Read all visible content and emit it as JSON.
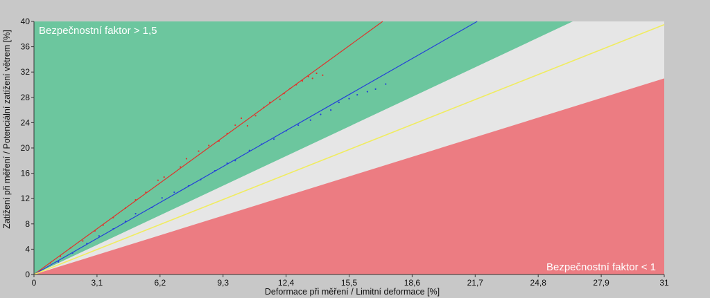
{
  "chart_data": {
    "type": "scatter",
    "xlabel": "Deformace při měření / Limitní deformace [%]",
    "ylabel": "Zatížení při měření / Potenciální zatížení větrem [%]",
    "xlim": [
      0,
      31
    ],
    "ylim": [
      0,
      40
    ],
    "x_ticks": [
      "0",
      "3,1",
      "6,2",
      "9,3",
      "12,4",
      "15,5",
      "18,6",
      "21,7",
      "24,8",
      "27,9",
      "31"
    ],
    "y_ticks": [
      "0",
      "4",
      "8",
      "12",
      "16",
      "20",
      "24",
      "28",
      "32",
      "36",
      "40"
    ],
    "grid": false,
    "annotations": {
      "top_left": "Bezpečnostní faktor > 1,5",
      "bottom_right": "Bezpečnostní faktor < 1"
    },
    "zones": {
      "safe_max_x_at_top": 26.5,
      "critical_y_at_right": 31.0,
      "colors": {
        "safe": "#6cc69e",
        "middle": "#e6e6e6",
        "critical": "#ec7c82"
      }
    },
    "series": [
      {
        "color": "#e0322a",
        "fit_line": {
          "x": [
            0,
            17.15
          ],
          "y": [
            0,
            40
          ]
        },
        "points": {
          "x": [
            0.8,
            1.3,
            1.8,
            2.4,
            3.0,
            3.4,
            3.9,
            4.5,
            5.0,
            5.5,
            6.1,
            6.4,
            7.2,
            7.5,
            8.1,
            8.6,
            9.1,
            9.5,
            9.9,
            10.2,
            10.5,
            10.9,
            11.3,
            11.6,
            12.1,
            12.3,
            12.6,
            12.9,
            13.2,
            13.5,
            13.7,
            13.9,
            14.2
          ],
          "y": [
            1.8,
            2.9,
            4.2,
            5.3,
            6.9,
            7.8,
            9.0,
            10.5,
            11.8,
            13.0,
            14.9,
            15.4,
            17.0,
            18.3,
            19.5,
            20.4,
            21.1,
            22.3,
            23.6,
            24.7,
            23.5,
            25.1,
            26.4,
            27.2,
            27.7,
            28.6,
            29.4,
            30.0,
            30.6,
            31.3,
            31.0,
            31.8,
            31.5
          ]
        }
      },
      {
        "color": "#2440d8",
        "fit_line": {
          "x": [
            0,
            21.8
          ],
          "y": [
            0,
            40
          ]
        },
        "points": {
          "x": [
            1.2,
            1.9,
            2.6,
            3.2,
            3.9,
            4.5,
            5.0,
            5.8,
            6.3,
            6.9,
            7.6,
            8.2,
            8.9,
            9.5,
            9.9,
            10.6,
            11.2,
            11.8,
            12.4,
            13.0,
            13.6,
            14.1,
            14.6,
            15.0,
            15.5,
            15.9,
            16.4,
            16.8,
            17.3
          ],
          "y": [
            2.0,
            3.4,
            4.9,
            6.1,
            7.2,
            8.4,
            9.6,
            10.6,
            12.1,
            13.0,
            14.0,
            15.0,
            16.4,
            17.6,
            18.0,
            19.6,
            20.6,
            21.4,
            22.7,
            23.6,
            24.4,
            25.3,
            26.0,
            27.2,
            27.8,
            28.4,
            28.9,
            29.3,
            30.1
          ]
        }
      },
      {
        "color": "#f0ec60",
        "fit_line": {
          "x": [
            0,
            31
          ],
          "y": [
            0,
            39.5
          ]
        }
      }
    ]
  }
}
